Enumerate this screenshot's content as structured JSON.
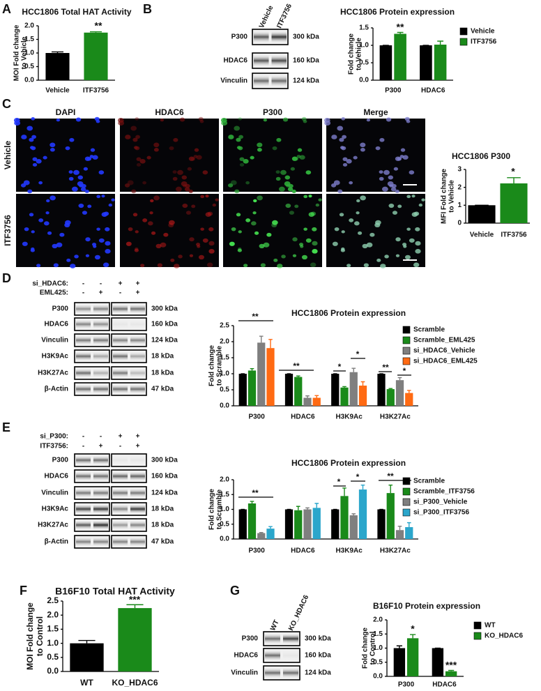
{
  "panel_labels": [
    "A",
    "B",
    "C",
    "D",
    "E",
    "F",
    "G"
  ],
  "blots": [
    {
      "lanes": [
        "Vehicle",
        "ITF3756"
      ],
      "rows": [
        {
          "protein": "P300",
          "size": "300 kDa"
        },
        {
          "protein": "HDAC6",
          "size": "160 kDa"
        },
        {
          "protein": "Vinculin",
          "size": "124 kDa"
        }
      ]
    },
    {
      "conditions": [
        {
          "label": "si_HDAC6:",
          "signs": [
            "-",
            "-",
            "+",
            "+"
          ]
        },
        {
          "label": "EML425:",
          "signs": [
            "-",
            "+",
            "-",
            "+"
          ]
        }
      ],
      "rows": [
        {
          "protein": "P300",
          "size": "300 kDa"
        },
        {
          "protein": "HDAC6",
          "size": "160 kDa"
        },
        {
          "protein": "Vinculin",
          "size": "124 kDa"
        },
        {
          "protein": "H3K9Ac",
          "size": "18 kDa"
        },
        {
          "protein": "H3K27Ac",
          "size": "18 kDa"
        },
        {
          "protein": "β-Actin",
          "size": "47 kDa"
        }
      ]
    },
    {
      "conditions": [
        {
          "label": "si_P300:",
          "signs": [
            "-",
            "-",
            "+",
            "+"
          ]
        },
        {
          "label": "ITF3756:",
          "signs": [
            "-",
            "+",
            "-",
            "+"
          ]
        }
      ],
      "rows": [
        {
          "protein": "P300",
          "size": "300 kDa"
        },
        {
          "protein": "HDAC6",
          "size": "160 kDa"
        },
        {
          "protein": "Vinculin",
          "size": "124 kDa"
        },
        {
          "protein": "H3K9Ac",
          "size": "18 kDa"
        },
        {
          "protein": "H3K27Ac",
          "size": "18 kDa"
        },
        {
          "protein": "β-Actin",
          "size": "47 kDa"
        }
      ]
    },
    {
      "lanes": [
        "WT",
        "KO_HDAC6"
      ],
      "rows": [
        {
          "protein": "P300",
          "size": "300 kDa"
        },
        {
          "protein": "HDAC6",
          "size": "160 kDa"
        },
        {
          "protein": "Vinculin",
          "size": "124 kDa"
        }
      ]
    }
  ],
  "microscopy": {
    "columns": [
      "DAPI",
      "HDAC6",
      "P300",
      "Merge"
    ],
    "rows": [
      "Vehicle",
      "ITF3756"
    ]
  },
  "chart_data": [
    {
      "type": "bar",
      "title": "HCC1806 Total HAT Activity",
      "ylabel": [
        "MOI Fold change",
        "to Vehicle"
      ],
      "categories": [
        "Vehicle",
        "ITF3756"
      ],
      "values": [
        1.0,
        1.75
      ],
      "errors": [
        0.04,
        0.03
      ],
      "colors": [
        "#000000",
        "#1a8a1a"
      ],
      "ylim": [
        0,
        2
      ],
      "yticks": [
        {
          "value": 0,
          "label": "0.0"
        },
        0.5,
        {
          "value": 1,
          "label": "1.0"
        },
        1.5,
        {
          "value": 2,
          "label": "2.0"
        }
      ],
      "annotations": [
        "**"
      ]
    },
    {
      "type": "bar",
      "title": "HCC1806 Protein expression",
      "ylabel": [
        "Fold change",
        "to Vehicle"
      ],
      "categories": [
        "P300",
        "HDAC6"
      ],
      "series": [
        {
          "name": "Vehicle",
          "color": "#000000",
          "values": [
            1.0,
            1.0
          ],
          "errors": [
            0,
            0
          ]
        },
        {
          "name": "ITF3756",
          "color": "#1a8a1a",
          "values": [
            1.33,
            1.02
          ],
          "errors": [
            0.04,
            0.1
          ]
        }
      ],
      "ylim": [
        0,
        1.5
      ],
      "yticks": [
        {
          "value": 0,
          "label": "0.0"
        },
        0.5,
        {
          "value": 1,
          "label": "1.0"
        },
        1.5
      ],
      "annotations": [
        "**"
      ]
    },
    {
      "type": "bar",
      "title": "HCC1806 P300",
      "ylabel": [
        "MFI Fold change",
        "to Vehicle"
      ],
      "categories": [
        "Vehicle",
        "ITF3756"
      ],
      "values": [
        1.0,
        2.22
      ],
      "errors": [
        0,
        0.32
      ],
      "colors": [
        "#000000",
        "#1a8a1a"
      ],
      "ylim": [
        0,
        3
      ],
      "yticks": [
        0,
        1,
        2,
        3
      ],
      "annotations": [
        "*"
      ]
    },
    {
      "type": "bar",
      "title": "HCC1806 Protein expression",
      "ylabel": [
        "Fold change",
        "to Scramble"
      ],
      "categories": [
        "P300",
        "HDAC6",
        "H3K9Ac",
        "H3K27Ac"
      ],
      "series": [
        {
          "name": "Scramble",
          "color": "#000000",
          "values": [
            1,
            1,
            1,
            1
          ],
          "errors": [
            0,
            0,
            0,
            0
          ]
        },
        {
          "name": "Scramble_EML425",
          "color": "#1a8a1a",
          "values": [
            1.1,
            0.9,
            0.57,
            0.52
          ],
          "errors": [
            0.06,
            0.03,
            0.03,
            0.02
          ]
        },
        {
          "name": "si_HDAC6_Vehicle",
          "color": "#7f7f7f",
          "values": [
            1.97,
            0.25,
            1.05,
            0.8
          ],
          "errors": [
            0.2,
            0.06,
            0.12,
            0.08
          ]
        },
        {
          "name": "si_HDAC6_EML425",
          "color": "#ff6a13",
          "values": [
            1.8,
            0.25,
            0.63,
            0.4
          ],
          "errors": [
            0.27,
            0.07,
            0.12,
            0.08
          ]
        }
      ],
      "ylim": [
        0,
        2.5
      ],
      "yticks": [
        {
          "value": 0,
          "label": "0.0"
        },
        0.5,
        {
          "value": 1,
          "label": "1.0"
        },
        1.5,
        {
          "value": 2,
          "label": "2.0"
        },
        2.5
      ],
      "annotations": [
        "**",
        "**",
        "*",
        "*",
        "**",
        "*"
      ]
    },
    {
      "type": "bar",
      "title": "HCC1806 Protein expression",
      "ylabel": [
        "Fold change",
        "to Scramble"
      ],
      "categories": [
        "P300",
        "HDAC6",
        "H3K9Ac",
        "H3K27Ac"
      ],
      "series": [
        {
          "name": "Scramble",
          "color": "#000000",
          "values": [
            1,
            1,
            1,
            1
          ],
          "errors": [
            0,
            0,
            0,
            0
          ]
        },
        {
          "name": "Scramble_ITF3756",
          "color": "#1a8a1a",
          "values": [
            1.2,
            0.97,
            1.45,
            1.55
          ],
          "errors": [
            0.07,
            0.13,
            0.27,
            0.27
          ]
        },
        {
          "name": "si_P300_Vehicle",
          "color": "#7f7f7f",
          "values": [
            0.2,
            1.0,
            0.8,
            0.3
          ],
          "errors": [
            0.02,
            0.05,
            0.05,
            0.13
          ]
        },
        {
          "name": "si_P300_ITF3756",
          "color": "#2ba6cb",
          "values": [
            0.35,
            1.05,
            1.67,
            0.4
          ],
          "errors": [
            0.07,
            0.15,
            0.15,
            0.15
          ]
        }
      ],
      "ylim": [
        0,
        2
      ],
      "yticks": [
        {
          "value": 0,
          "label": "0.0"
        },
        0.5,
        {
          "value": 1,
          "label": "1.0"
        },
        1.5,
        {
          "value": 2,
          "label": "2.0"
        }
      ],
      "annotations": [
        "**",
        "*",
        "*",
        "**"
      ]
    },
    {
      "type": "bar",
      "title": "B16F10 Total HAT Activity",
      "ylabel": [
        "MOI Fold change",
        "to Control"
      ],
      "categories": [
        "WT",
        "KO_HDAC6"
      ],
      "values": [
        1.0,
        2.25
      ],
      "errors": [
        0.1,
        0.12
      ],
      "colors": [
        "#000000",
        "#1a8a1a"
      ],
      "ylim": [
        0,
        2.5
      ],
      "yticks": [
        {
          "value": 0,
          "label": "0.0"
        },
        0.5,
        {
          "value": 1,
          "label": "1.0"
        },
        1.5,
        {
          "value": 2,
          "label": "2.0"
        },
        2.5
      ],
      "annotations": [
        "***"
      ]
    },
    {
      "type": "bar",
      "title": "B16F10 Protein expression",
      "ylabel": [
        "Fold change",
        "to Control"
      ],
      "categories": [
        "P300",
        "HDAC6"
      ],
      "series": [
        {
          "name": "WT",
          "color": "#000000",
          "values": [
            1.0,
            1.0
          ],
          "errors": [
            0.08,
            0
          ]
        },
        {
          "name": "KO_HDAC6",
          "color": "#1a8a1a",
          "values": [
            1.35,
            0.18
          ],
          "errors": [
            0.13,
            0.03
          ]
        }
      ],
      "ylim": [
        0,
        2
      ],
      "yticks": [
        {
          "value": 0,
          "label": "0.0"
        },
        0.5,
        {
          "value": 1,
          "label": "1.0"
        },
        1.5,
        {
          "value": 2,
          "label": "2.0"
        }
      ],
      "annotations": [
        "*",
        "***"
      ]
    }
  ]
}
